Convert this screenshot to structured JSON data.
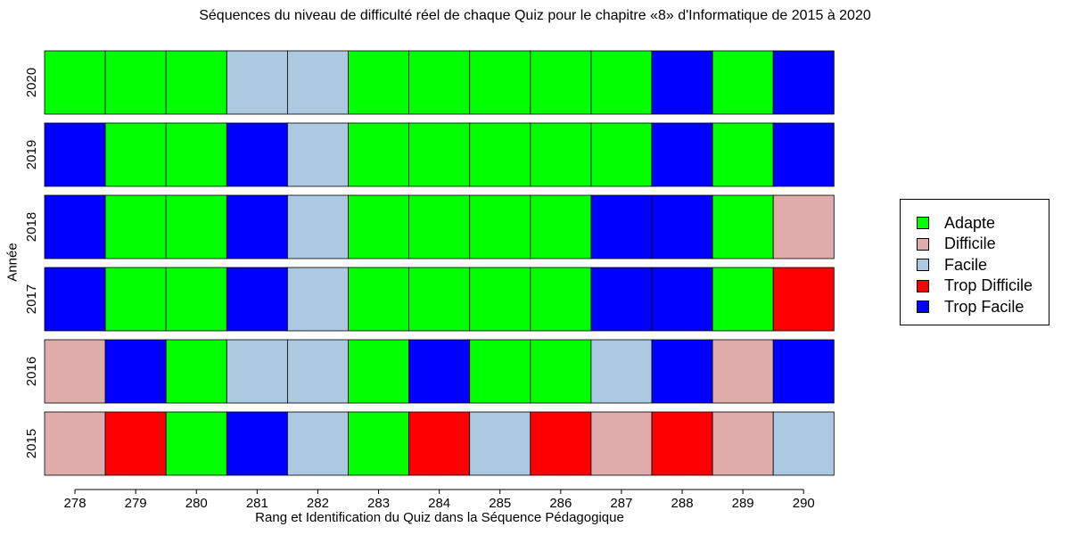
{
  "chart_data": {
    "type": "heatmap",
    "title": "Séquences du niveau de difficulté réel de chaque Quiz pour le chapitre «8» d'Informatique de 2015 à 2020",
    "xlabel": "Rang et Identification du Quiz dans la Séquence Pédagogique",
    "ylabel": "Année",
    "x": [
      "278",
      "279",
      "280",
      "281",
      "282",
      "283",
      "284",
      "285",
      "286",
      "287",
      "288",
      "289",
      "290"
    ],
    "y": [
      "2020",
      "2019",
      "2018",
      "2017",
      "2016",
      "2015"
    ],
    "categories": [
      "Adapte",
      "Difficile",
      "Facile",
      "Trop Difficile",
      "Trop Facile"
    ],
    "colors": {
      "Adapte": "#00ff00",
      "Difficile": "#dfabab",
      "Facile": "#abc9e1",
      "Trop Difficile": "#ff0000",
      "Trop Facile": "#0000ff"
    },
    "rows": [
      {
        "year": "2020",
        "values": [
          "Adapte",
          "Adapte",
          "Adapte",
          "Facile",
          "Facile",
          "Adapte",
          "Adapte",
          "Adapte",
          "Adapte",
          "Adapte",
          "Trop Facile",
          "Adapte",
          "Trop Facile"
        ]
      },
      {
        "year": "2019",
        "values": [
          "Trop Facile",
          "Adapte",
          "Adapte",
          "Trop Facile",
          "Facile",
          "Adapte",
          "Adapte",
          "Adapte",
          "Adapte",
          "Adapte",
          "Trop Facile",
          "Adapte",
          "Trop Facile"
        ]
      },
      {
        "year": "2018",
        "values": [
          "Trop Facile",
          "Adapte",
          "Adapte",
          "Trop Facile",
          "Facile",
          "Adapte",
          "Adapte",
          "Adapte",
          "Adapte",
          "Trop Facile",
          "Trop Facile",
          "Adapte",
          "Difficile"
        ]
      },
      {
        "year": "2017",
        "values": [
          "Trop Facile",
          "Adapte",
          "Adapte",
          "Trop Facile",
          "Facile",
          "Adapte",
          "Adapte",
          "Adapte",
          "Adapte",
          "Trop Facile",
          "Trop Facile",
          "Adapte",
          "Trop Difficile"
        ]
      },
      {
        "year": "2016",
        "values": [
          "Difficile",
          "Trop Facile",
          "Adapte",
          "Facile",
          "Facile",
          "Adapte",
          "Trop Facile",
          "Adapte",
          "Adapte",
          "Facile",
          "Trop Facile",
          "Difficile",
          "Trop Facile"
        ]
      },
      {
        "year": "2015",
        "values": [
          "Difficile",
          "Trop Difficile",
          "Adapte",
          "Trop Facile",
          "Facile",
          "Adapte",
          "Trop Difficile",
          "Facile",
          "Trop Difficile",
          "Difficile",
          "Trop Difficile",
          "Difficile",
          "Facile"
        ]
      }
    ],
    "legend_position": "right"
  }
}
